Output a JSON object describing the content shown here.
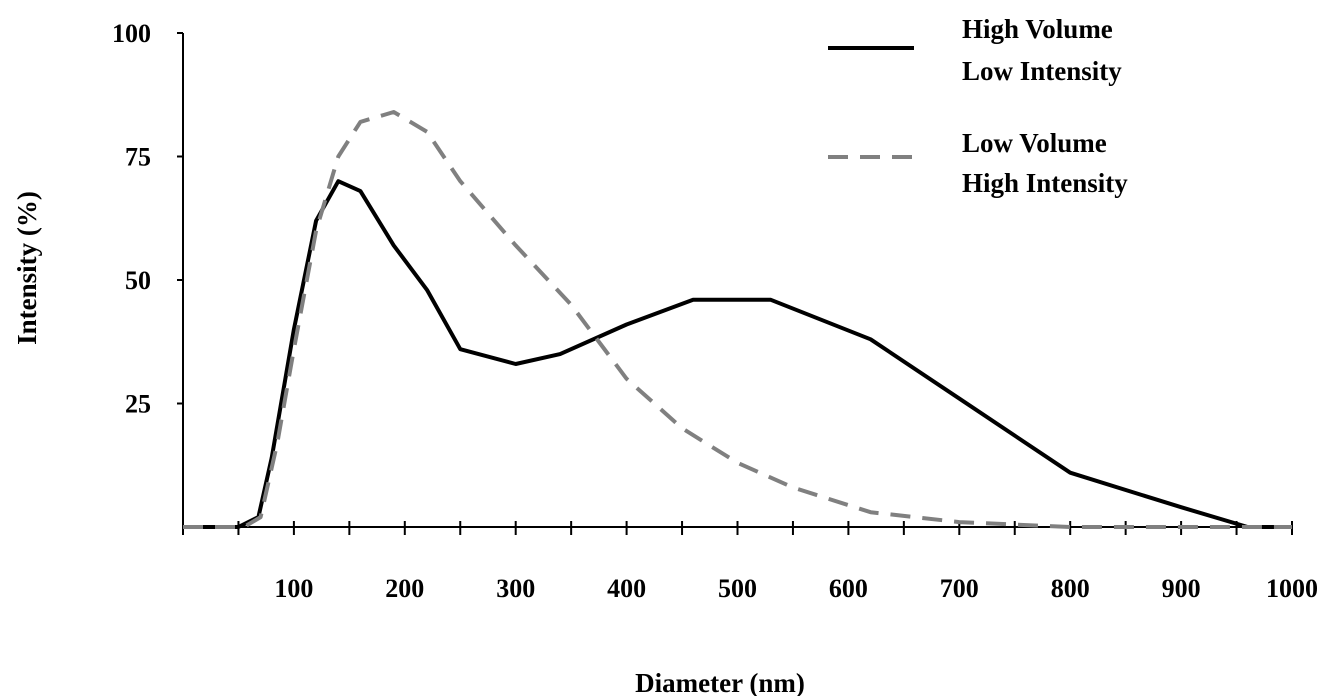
{
  "chart_data": {
    "type": "line",
    "title": "",
    "xlabel": "Diameter (nm)",
    "ylabel": "Intensity (%)",
    "xlim": [
      0,
      1000
    ],
    "ylim": [
      0,
      100
    ],
    "x_ticks": [
      100,
      200,
      300,
      400,
      500,
      600,
      700,
      800,
      900,
      1000
    ],
    "y_ticks": [
      25,
      50,
      75,
      100
    ],
    "grid": false,
    "legend_position": "top-right",
    "series": [
      {
        "name": "High Volume Low Intensity",
        "legend_lines": [
          "High Volume",
          "Low Intensity"
        ],
        "style": "solid",
        "color": "#000000",
        "x": [
          0,
          50,
          68,
          80,
          100,
          120,
          140,
          160,
          190,
          220,
          250,
          300,
          340,
          400,
          460,
          530,
          620,
          700,
          800,
          900,
          960,
          1000
        ],
        "y": [
          0,
          0,
          2,
          14,
          40,
          62,
          70,
          68,
          57,
          48,
          36,
          33,
          35,
          41,
          46,
          46,
          38,
          26,
          11,
          4,
          0,
          0
        ]
      },
      {
        "name": "Low Volume High Intensity",
        "legend_lines": [
          "Low Volume",
          "High Intensity"
        ],
        "style": "dashed",
        "color": "#808080",
        "x": [
          0,
          55,
          70,
          85,
          100,
          120,
          140,
          160,
          190,
          220,
          250,
          300,
          350,
          400,
          450,
          500,
          550,
          620,
          700,
          800,
          900,
          1000
        ],
        "y": [
          0,
          0,
          2,
          17,
          36,
          60,
          75,
          82,
          84,
          80,
          70,
          57,
          45,
          30,
          20,
          13,
          8,
          3,
          1,
          0,
          0,
          0
        ]
      }
    ]
  }
}
